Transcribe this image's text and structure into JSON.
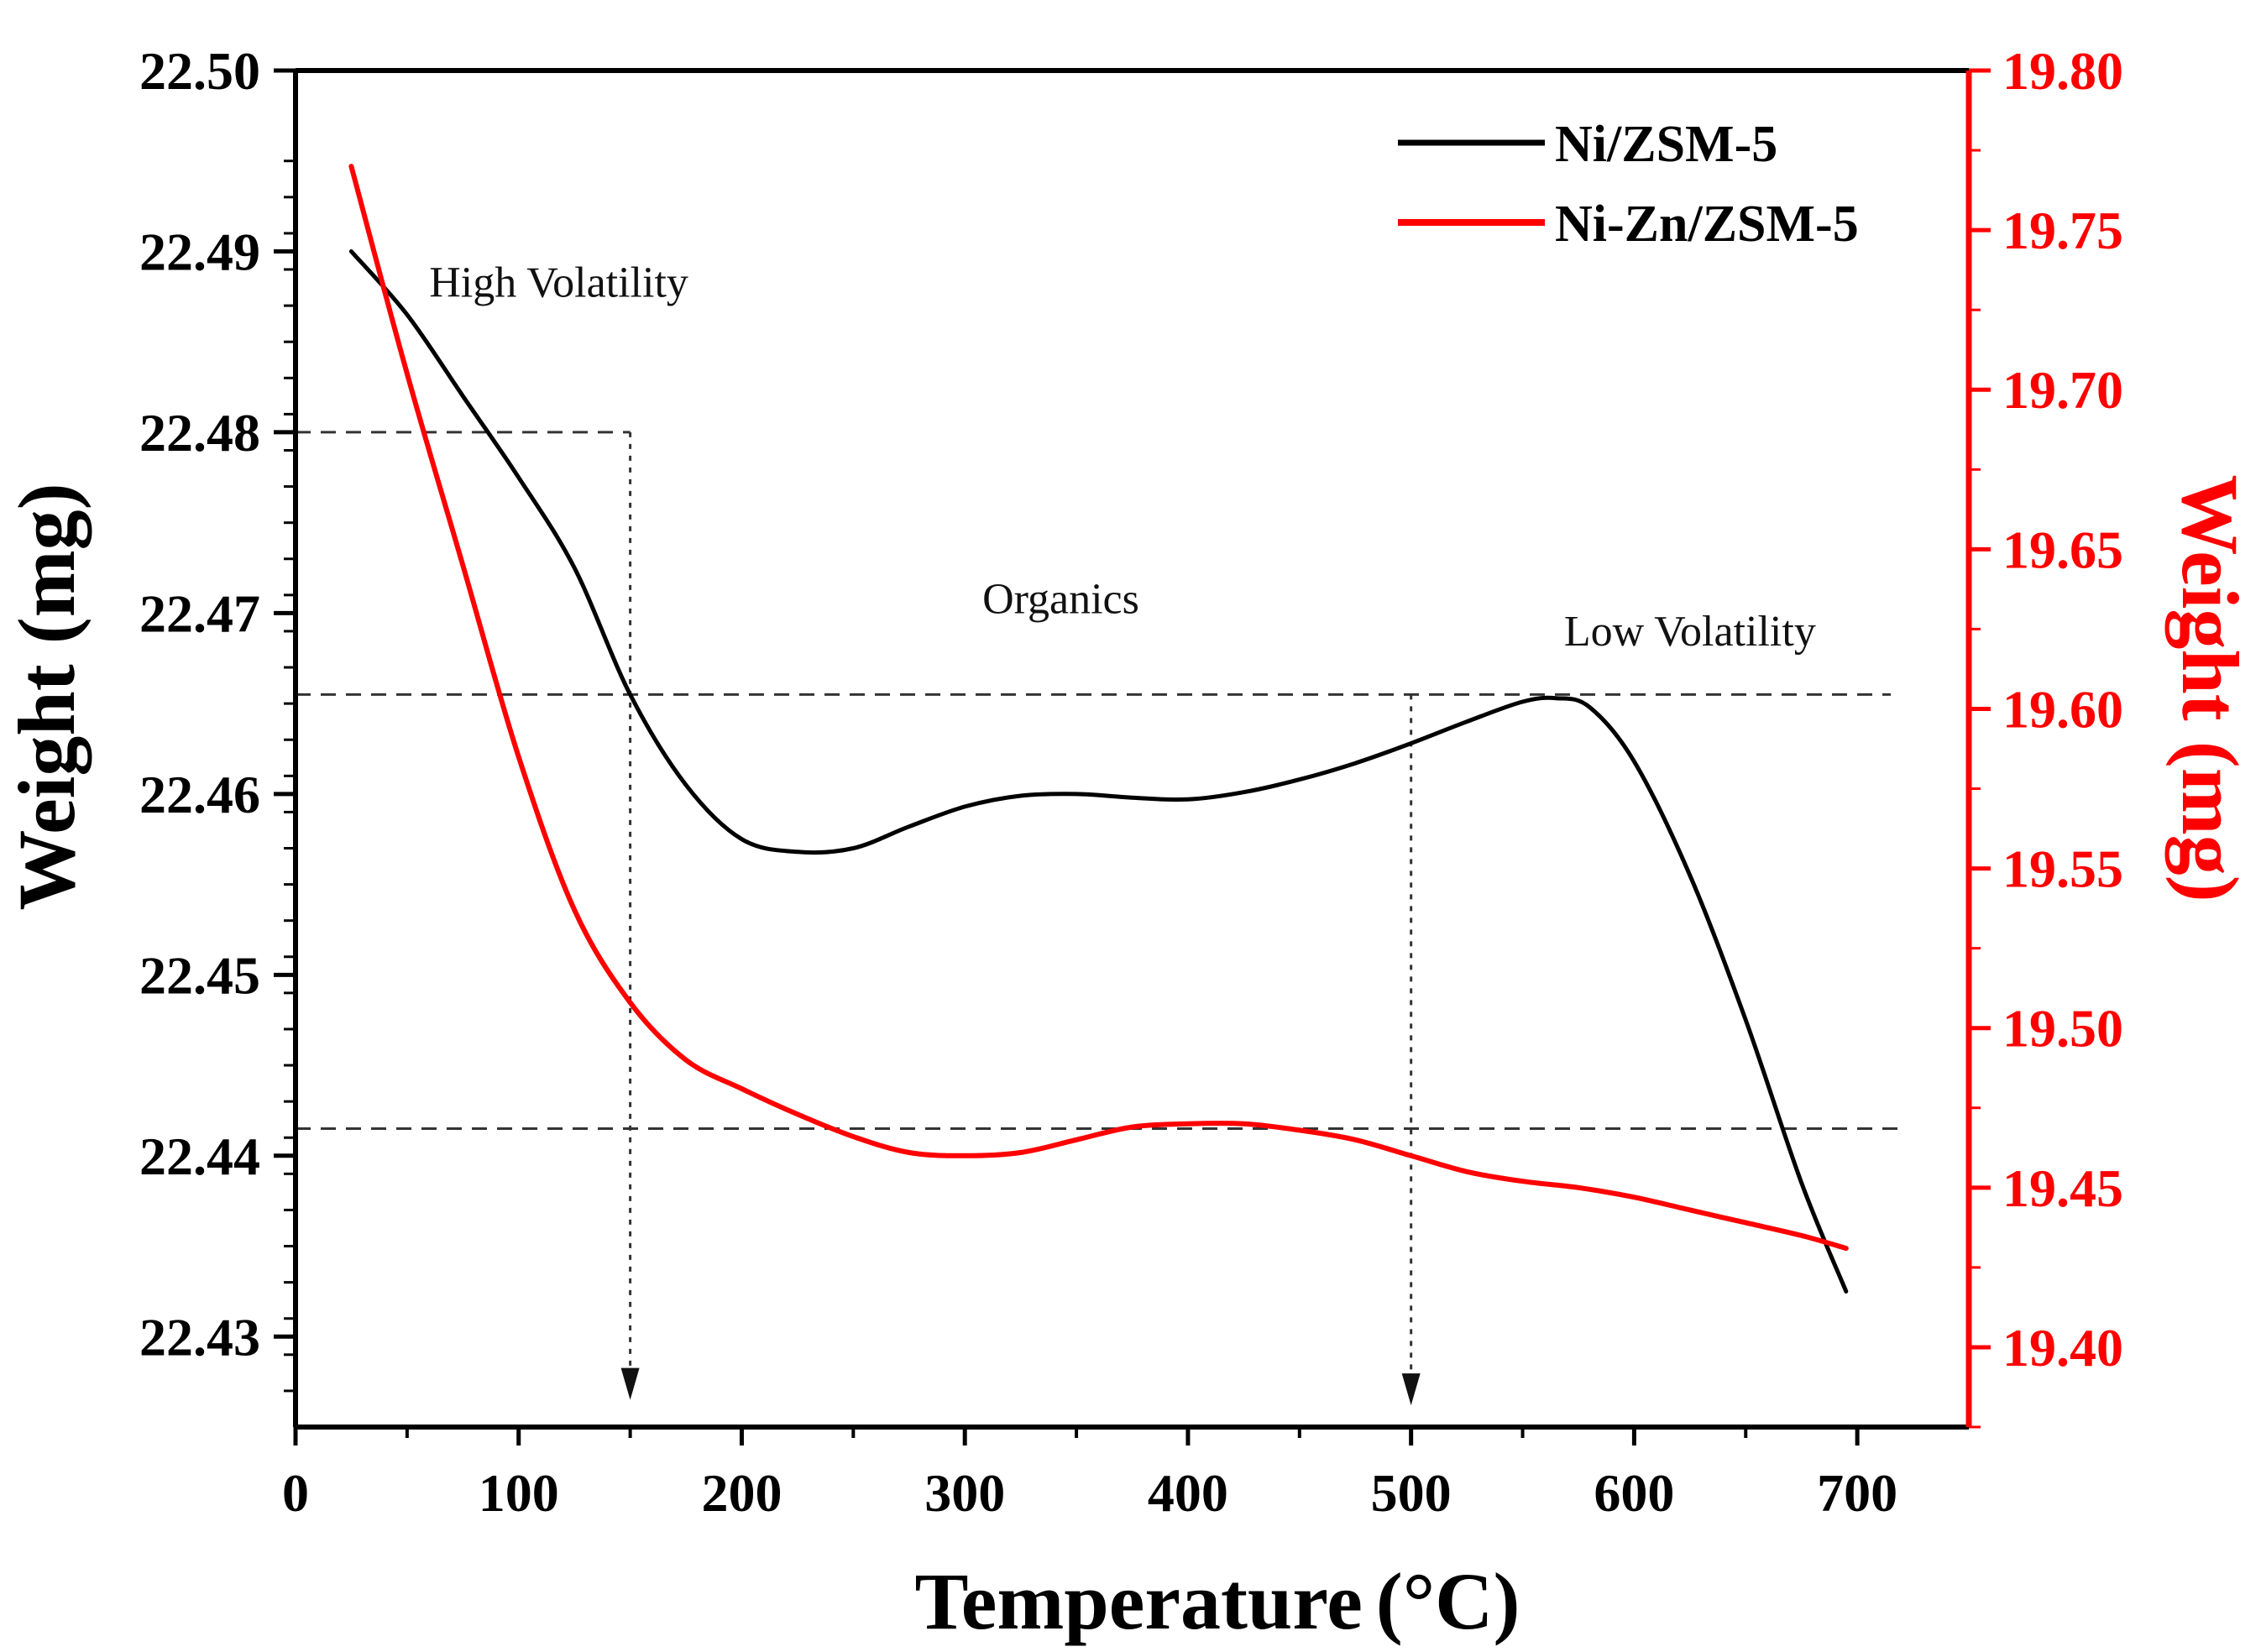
{
  "chart_data": {
    "type": "line",
    "title": "",
    "xlabel": "Temperature",
    "xlabel_unit": "(°C)",
    "ylabel_left": "Weight (mg)",
    "ylabel_right": "Weight (mg)",
    "xlim": [
      0,
      750
    ],
    "ylim_left": [
      22.425,
      22.5
    ],
    "ylim_right": [
      19.375,
      19.8
    ],
    "x_ticks": [
      "0",
      "100",
      "200",
      "300",
      "400",
      "500",
      "600",
      "700"
    ],
    "y_ticks_left": [
      "22.43",
      "22.44",
      "22.45",
      "22.46",
      "22.47",
      "22.48",
      "22.49",
      "22.50"
    ],
    "y_ticks_right": [
      "19.40",
      "19.45",
      "19.50",
      "19.55",
      "19.60",
      "19.65",
      "19.70",
      "19.75",
      "19.80"
    ],
    "legend_position": "top-right",
    "colors": {
      "left_axis": "#000000",
      "right_axis": "#ff0000",
      "series1": "#000000",
      "series2": "#ff0000",
      "guides": "#333333"
    },
    "series": [
      {
        "name": "Ni/ZSM-5",
        "axis": "left",
        "x": [
          25,
          50,
          75,
          100,
          125,
          150,
          175,
          200,
          225,
          250,
          275,
          300,
          325,
          350,
          375,
          400,
          425,
          450,
          475,
          500,
          525,
          550,
          565,
          580,
          600,
          625,
          650,
          675,
          695
        ],
        "y": [
          22.49,
          22.4865,
          22.482,
          22.4775,
          22.4725,
          22.4655,
          22.4605,
          22.4575,
          22.4568,
          22.457,
          22.4582,
          22.4593,
          22.4599,
          22.46,
          22.4598,
          22.4597,
          22.4601,
          22.4608,
          22.4617,
          22.4628,
          22.464,
          22.4651,
          22.4653,
          22.4648,
          22.4618,
          22.4555,
          22.4475,
          22.4385,
          22.4325
        ]
      },
      {
        "name": "Ni-Zn/ZSM-5",
        "axis": "right",
        "x": [
          25,
          50,
          75,
          100,
          125,
          150,
          175,
          200,
          225,
          250,
          275,
          300,
          325,
          350,
          375,
          400,
          425,
          450,
          475,
          500,
          525,
          550,
          575,
          600,
          625,
          650,
          675,
          695
        ],
        "y": [
          19.77,
          19.705,
          19.645,
          19.585,
          19.537,
          19.508,
          19.49,
          19.481,
          19.473,
          19.466,
          19.461,
          19.46,
          19.461,
          19.465,
          19.469,
          19.47,
          19.47,
          19.468,
          19.465,
          19.46,
          19.455,
          19.452,
          19.45,
          19.447,
          19.443,
          19.439,
          19.435,
          19.431
        ]
      }
    ],
    "guides": {
      "horizontal": [
        {
          "axis": "left",
          "y": 22.48,
          "x_from": 0,
          "x_to": 150
        },
        {
          "axis": "left",
          "y": 22.4655,
          "x_from": 0,
          "x_to": 715
        },
        {
          "axis": "left",
          "y": 22.4415,
          "x_from": 0,
          "x_to": 722
        }
      ],
      "vertical_arrows": [
        {
          "x": 150,
          "y_from": 22.48,
          "y_to": 22.4265
        },
        {
          "x": 500,
          "y_from": 22.4655,
          "y_to": 22.4262
        }
      ]
    },
    "annotations": [
      {
        "text": "High Volatility",
        "x": 118,
        "y": 22.4875
      },
      {
        "text": "Organics",
        "x": 343,
        "y": 22.47
      },
      {
        "text": "Low Volatility",
        "x": 625,
        "y": 22.4682
      }
    ]
  }
}
